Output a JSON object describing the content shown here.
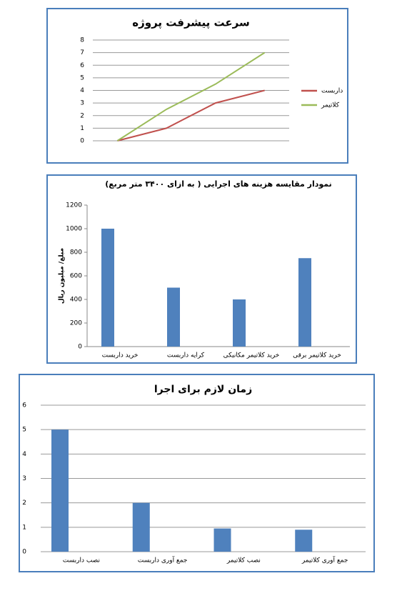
{
  "chart_data": [
    {
      "type": "line",
      "title": "سرعت پیشرفت پروژه",
      "categories": [
        null,
        null,
        null,
        null
      ],
      "series": [
        {
          "name": "داربست",
          "color": "#c0504d",
          "values": [
            0,
            1,
            3,
            4
          ]
        },
        {
          "name": "کلاتیمر",
          "color": "#9bbb59",
          "values": [
            0,
            2.5,
            4.5,
            7
          ]
        }
      ],
      "ylim": [
        0,
        8
      ],
      "yticks": [
        0,
        1,
        2,
        3,
        4,
        5,
        6,
        7,
        8
      ],
      "grid": true,
      "legend": "right"
    },
    {
      "type": "bar",
      "title": "نمودار مقایسه هزینه های اجرایی ( به ازای ۳۴۰۰ متر مربع)",
      "y_label": "مبلغ/ میلیون ریال",
      "categories": [
        "خرید داربست",
        "کرایه داربست",
        "خرید کلاتیمر مکانیکی",
        "خرید کلاتیمر برقی"
      ],
      "values": [
        1000,
        500,
        400,
        750
      ],
      "color": "#4f81bd",
      "ylim": [
        0,
        1200
      ],
      "yticks": [
        0,
        200,
        400,
        600,
        800,
        1000,
        1200
      ],
      "grid": false
    },
    {
      "type": "bar",
      "title": "زمان لازم برای اجرا",
      "categories": [
        "نصب داربست",
        "جمع آوری داربست",
        "نصب کلاتیمر",
        "جمع آوری کلاتیمر"
      ],
      "values": [
        5,
        2,
        0.95,
        0.9
      ],
      "color": "#4f81bd",
      "ylim": [
        0,
        6
      ],
      "yticks": [
        0,
        1,
        2,
        3,
        4,
        5,
        6
      ],
      "grid": true
    }
  ]
}
